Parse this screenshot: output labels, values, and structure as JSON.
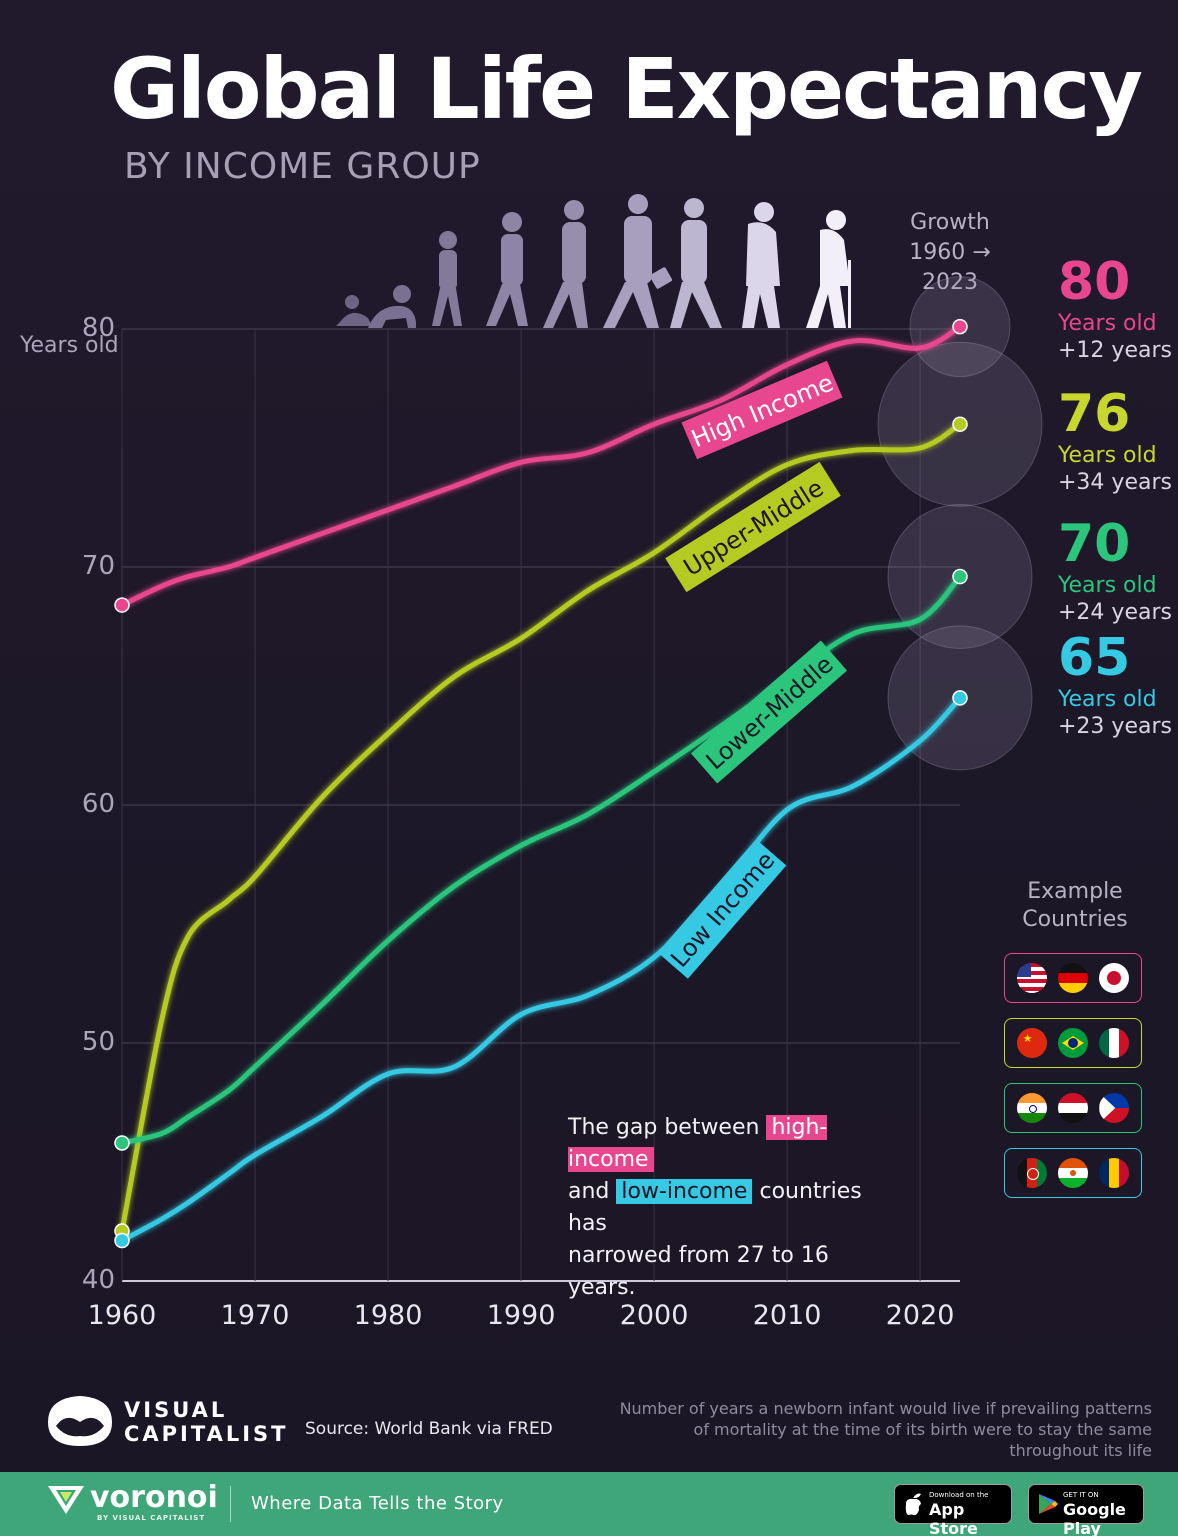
{
  "header": {
    "title": "Global Life Expectancy",
    "subtitle": "BY INCOME GROUP"
  },
  "y_unit_label": "Years old",
  "growth_label": {
    "line1": "Growth",
    "line2": "1960 → 2023"
  },
  "chart_data": {
    "type": "line",
    "title": "Global Life Expectancy",
    "subtitle": "BY INCOME GROUP",
    "ylabel": "Years old",
    "xlim": [
      1960,
      2023
    ],
    "ylim": [
      40,
      80
    ],
    "x_ticks": [
      1960,
      1970,
      1980,
      1990,
      2000,
      2010,
      2020
    ],
    "y_ticks": [
      40,
      50,
      60,
      70,
      80
    ],
    "grid": true,
    "x": [
      1960,
      1963,
      1965,
      1968,
      1970,
      1975,
      1980,
      1985,
      1990,
      1995,
      2000,
      2005,
      2010,
      2015,
      2020,
      2023
    ],
    "series": [
      {
        "name": "High Income",
        "color": "#e8468e",
        "values": [
          68.4,
          69.2,
          69.6,
          70.0,
          70.4,
          71.4,
          72.4,
          73.4,
          74.4,
          74.8,
          76.0,
          77.0,
          78.5,
          79.5,
          79.2,
          80.1
        ]
      },
      {
        "name": "Upper-Middle",
        "color": "#b6cb22",
        "values": [
          42.1,
          51.0,
          54.5,
          56.0,
          57.0,
          60.3,
          63.0,
          65.4,
          67.0,
          69.0,
          70.6,
          72.6,
          74.3,
          74.9,
          75.0,
          76.0
        ]
      },
      {
        "name": "Lower-Middle",
        "color": "#2cc57c",
        "values": [
          45.8,
          46.2,
          46.9,
          48.0,
          49.0,
          51.6,
          54.3,
          56.6,
          58.3,
          59.6,
          61.4,
          63.3,
          65.3,
          67.2,
          67.8,
          69.6
        ]
      },
      {
        "name": "Low Income",
        "color": "#36c9e3",
        "values": [
          41.7,
          42.6,
          43.3,
          44.5,
          45.3,
          46.9,
          48.7,
          49.0,
          51.2,
          52.0,
          53.6,
          56.5,
          59.8,
          60.8,
          62.7,
          64.5
        ]
      }
    ]
  },
  "end_labels": [
    {
      "value": "80",
      "unit": "Years old",
      "growth": "+12 years",
      "color": "#e8468e"
    },
    {
      "value": "76",
      "unit": "Years old",
      "growth": "+34  years",
      "color": "#c7d72d"
    },
    {
      "value": "70",
      "unit": "Years old",
      "growth": "+24 years",
      "color": "#2cc57c"
    },
    {
      "value": "65",
      "unit": "Years old",
      "growth": "+23 years",
      "color": "#36c9e3"
    }
  ],
  "example_countries": {
    "heading_line1": "Example",
    "heading_line2": "Countries"
  },
  "note": {
    "text1": "The gap between",
    "highlight_high": "high-income",
    "text2": "and",
    "highlight_low": "low-income",
    "text3": "countries has",
    "text4": "narrowed from 27 to 16 years."
  },
  "brand": {
    "logo_line1": "VISUAL",
    "logo_line2": "CAPITALIST",
    "source": "Source: World Bank via FRED",
    "definition": "Number of years a newborn infant would live if prevailing patterns of mortality at the time of its birth were to stay the same throughout its life"
  },
  "footer": {
    "brand": "voronoi",
    "brand_by": "BY VISUAL CAPITALIST",
    "tagline": "Where Data Tells the Story",
    "app_store_small": "Download on the",
    "app_store_large": "App Store",
    "google_small": "GET IT ON",
    "google_large": "Google Play"
  }
}
